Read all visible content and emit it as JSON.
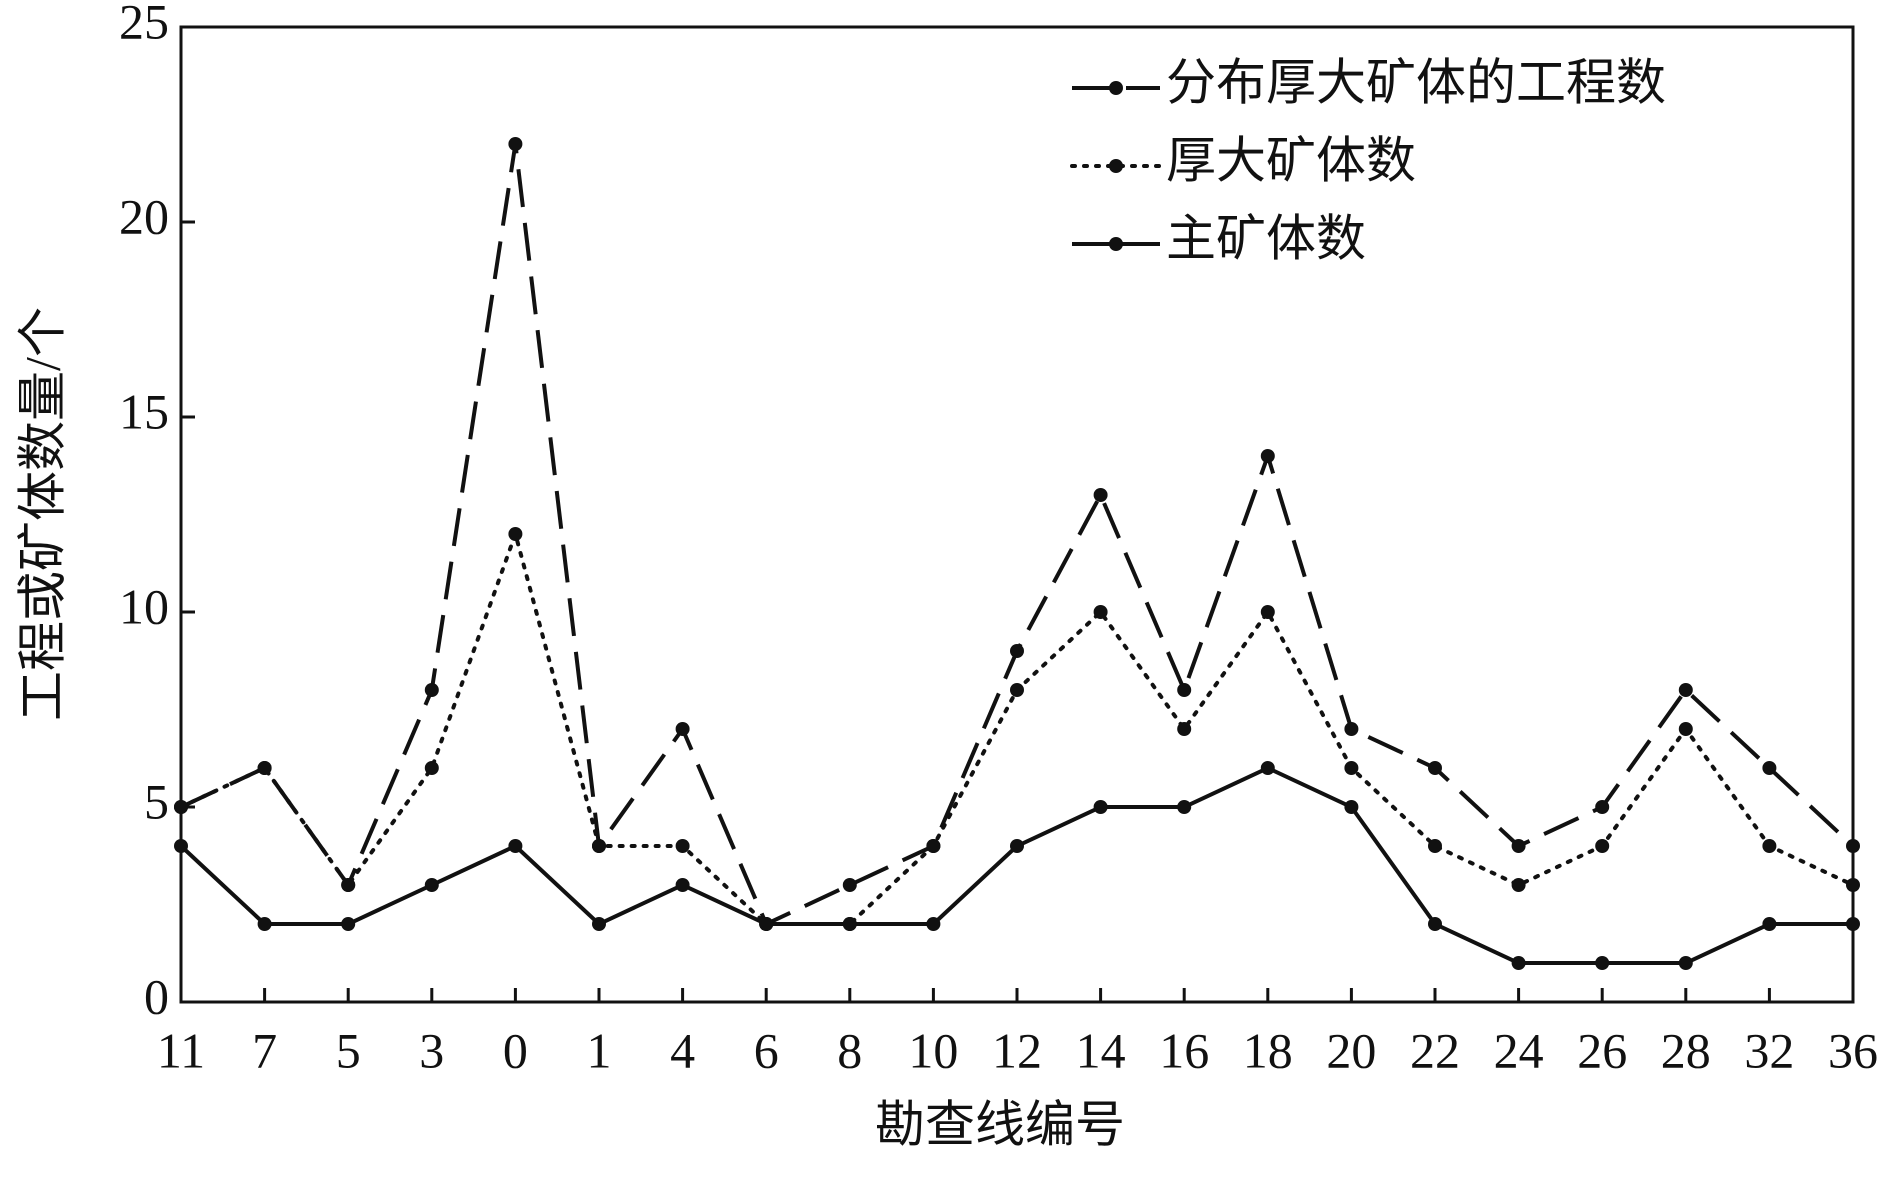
{
  "chart_data": {
    "type": "line",
    "x_label": "勘查线编号",
    "y_label": "工程或矿体数量/个",
    "categories": [
      "11",
      "7",
      "5",
      "3",
      "0",
      "1",
      "4",
      "6",
      "8",
      "10",
      "12",
      "14",
      "16",
      "18",
      "20",
      "22",
      "24",
      "26",
      "28",
      "32",
      "36"
    ],
    "series": [
      {
        "name": "分布厚大矿体的工程数",
        "color": "#111111",
        "style": "dashed",
        "values": [
          5,
          6,
          3,
          8,
          22,
          4,
          7,
          2,
          3,
          4,
          9,
          13,
          8,
          14,
          7,
          6,
          4,
          5,
          8,
          6,
          4
        ]
      },
      {
        "name": "厚大矿体数",
        "color": "#111111",
        "style": "dotted",
        "values": [
          5,
          6,
          3,
          6,
          12,
          4,
          4,
          2,
          2,
          4,
          8,
          10,
          7,
          10,
          6,
          4,
          3,
          4,
          7,
          4,
          3
        ]
      },
      {
        "name": "主矿体数",
        "color": "#111111",
        "style": "solid",
        "values": [
          4,
          2,
          2,
          3,
          4,
          2,
          3,
          2,
          2,
          2,
          4,
          5,
          5,
          6,
          5,
          2,
          1,
          1,
          1,
          2,
          2
        ]
      }
    ],
    "ylim": [
      0,
      25
    ],
    "yticks": [
      0,
      5,
      10,
      15,
      20,
      25
    ],
    "legend": "upper right"
  }
}
